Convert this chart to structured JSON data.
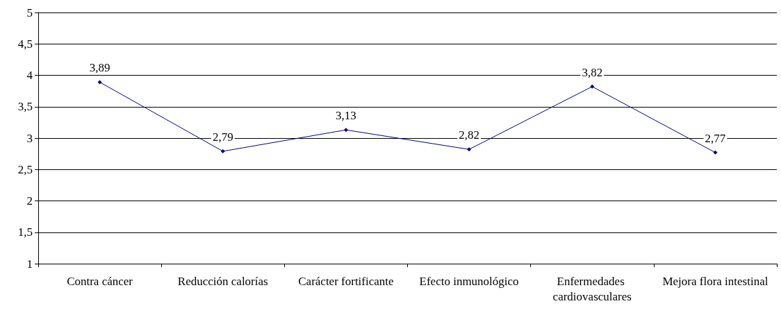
{
  "chart_data": {
    "type": "line",
    "categories": [
      "Contra cáncer",
      "Reducción calorías",
      "Carácter fortificante",
      "Efecto inmunológico",
      "Enfermedades cardiovasculares",
      "Mejora flora intestinal"
    ],
    "series": [
      {
        "color": "#000080",
        "values": [
          3.89,
          2.79,
          3.13,
          2.82,
          3.82,
          2.77
        ],
        "value_labels": [
          "3,89",
          "2,79",
          "3,13",
          "2,82",
          "3,82",
          "2,77"
        ]
      }
    ],
    "ylim": [
      1,
      5
    ],
    "yticks": [
      1,
      {
        "value": 1.5,
        "label": "1,5"
      },
      2,
      {
        "value": 2.5,
        "label": "2,5"
      },
      3,
      {
        "value": 3.5,
        "label": "3,5"
      },
      4,
      {
        "value": 4.5,
        "label": "4,5"
      },
      5
    ],
    "grid": "y",
    "marker": "diamond",
    "line_style": "solid"
  }
}
